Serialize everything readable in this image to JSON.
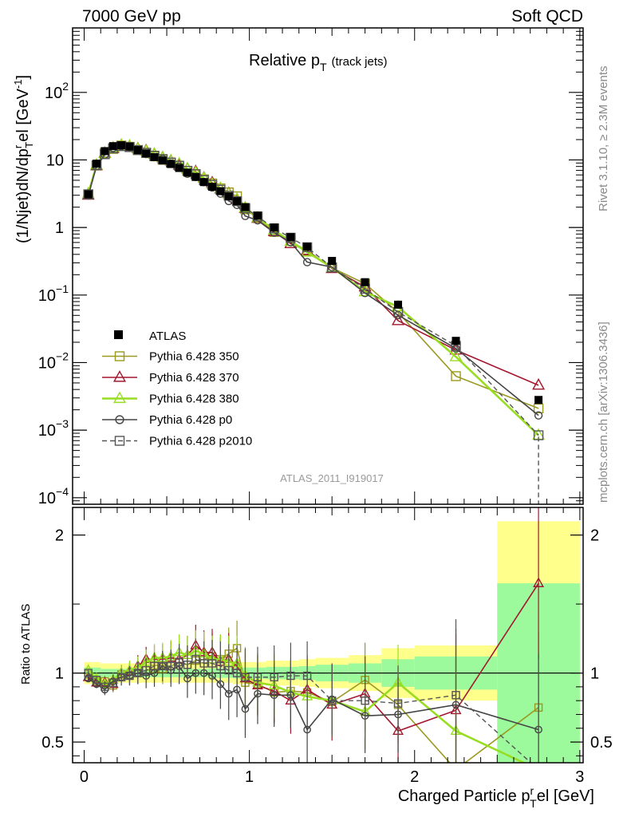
{
  "header": {
    "left": "7000 GeV pp",
    "right": "Soft QCD"
  },
  "side_labels": {
    "rivet": "Rivet 3.1.10, ≥ 2.3M events",
    "mcplots": "mcplots.cern.ch [arXiv:1306.3436]"
  },
  "chart_data": {
    "type": "line",
    "title_main": "Relative p",
    "title_sub": "T",
    "title_paren": "(track jets)",
    "watermark": "ATLAS_2011_I919017",
    "ylabel_text": "(1/Njet)dN/dp",
    "ylabel_super": "r",
    "ylabel_sub": "T",
    "ylabel_tail": "el [GeV",
    "ylabel_exp": "-1",
    "ylabel_close": "]",
    "xlabel_text": "Charged Particle p",
    "xlabel_super": "r",
    "xlabel_sub": "T",
    "xlabel_tail": "el [GeV]",
    "ratio_ylabel": "Ratio to ATLAS",
    "xlim": [
      -0.07,
      3.02
    ],
    "ylim_log": [
      8e-05,
      900
    ],
    "ratio_ylim": [
      0.35,
      2.2
    ],
    "y_ticks": [
      {
        "v": 0.0001,
        "b": "10",
        "e": "−4"
      },
      {
        "v": 0.001,
        "b": "10",
        "e": "−3"
      },
      {
        "v": 0.01,
        "b": "10",
        "e": "−2"
      },
      {
        "v": 0.1,
        "b": "10",
        "e": "−1"
      },
      {
        "v": 1,
        "b": "1",
        "e": ""
      },
      {
        "v": 10,
        "b": "10",
        "e": ""
      },
      {
        "v": 100,
        "b": "10",
        "e": "2"
      }
    ],
    "x_ticks": [
      "0",
      "1",
      "2",
      "3"
    ],
    "x_tick_values": [
      0,
      1,
      2,
      3
    ],
    "ratio_ticks": [
      "0.5",
      "1",
      "2"
    ],
    "ratio_tick_values": [
      0.5,
      1,
      2
    ],
    "x": [
      0.025,
      0.075,
      0.125,
      0.175,
      0.225,
      0.275,
      0.325,
      0.375,
      0.425,
      0.475,
      0.525,
      0.575,
      0.625,
      0.675,
      0.725,
      0.775,
      0.825,
      0.875,
      0.925,
      0.975,
      1.05,
      1.15,
      1.25,
      1.35,
      1.5,
      1.7,
      1.9,
      2.25,
      2.75
    ],
    "bin_edges": [
      0.0,
      0.05,
      0.1,
      0.15,
      0.2,
      0.25,
      0.3,
      0.35,
      0.4,
      0.45,
      0.5,
      0.55,
      0.6,
      0.65,
      0.7,
      0.75,
      0.8,
      0.85,
      0.9,
      0.95,
      1.0,
      1.1,
      1.2,
      1.3,
      1.4,
      1.6,
      1.8,
      2.0,
      2.5,
      3.0
    ],
    "data": {
      "name": "ATLAS",
      "values": [
        3.1,
        8.8,
        13.5,
        16.0,
        16.5,
        15.8,
        14.0,
        12.5,
        11.0,
        9.8,
        8.7,
        7.6,
        6.5,
        5.6,
        4.7,
        4.0,
        3.45,
        2.9,
        2.45,
        2.0,
        1.5,
        1.0,
        0.72,
        0.52,
        0.32,
        0.155,
        0.072,
        0.021,
        0.0028
      ],
      "stat_band": [
        0.04,
        0.04,
        0.03,
        0.03,
        0.03,
        0.03,
        0.03,
        0.03,
        0.03,
        0.03,
        0.03,
        0.03,
        0.03,
        0.03,
        0.03,
        0.035,
        0.035,
        0.035,
        0.04,
        0.04,
        0.04,
        0.045,
        0.045,
        0.05,
        0.06,
        0.07,
        0.1,
        0.12,
        0.65
      ],
      "total_band": [
        0.08,
        0.08,
        0.07,
        0.07,
        0.07,
        0.07,
        0.07,
        0.07,
        0.07,
        0.07,
        0.07,
        0.07,
        0.07,
        0.07,
        0.07,
        0.07,
        0.07,
        0.07,
        0.08,
        0.08,
        0.08,
        0.09,
        0.09,
        0.1,
        0.11,
        0.13,
        0.18,
        0.2,
        1.1
      ]
    },
    "series": [
      {
        "name": "Pythia 6.428 350",
        "color": "#9b9a20",
        "marker": "square",
        "dash": false,
        "width": 1.6,
        "ratio": [
          0.99,
          0.94,
          0.94,
          0.91,
          0.99,
          0.99,
          1.0,
          1.02,
          1.03,
          1.03,
          1.05,
          1.08,
          1.06,
          1.09,
          1.1,
          1.12,
          1.1,
          1.14,
          1.18,
          0.93,
          0.92,
          0.86,
          0.87,
          0.86,
          0.79,
          0.95,
          0.77,
          0.3,
          0.75
        ]
      },
      {
        "name": "Pythia 6.428 370",
        "color": "#a3172f",
        "marker": "triangle",
        "dash": false,
        "width": 1.6,
        "ratio": [
          0.97,
          0.93,
          0.93,
          0.92,
          1.0,
          1.01,
          1.05,
          1.1,
          1.1,
          1.1,
          1.11,
          1.1,
          1.13,
          1.2,
          1.15,
          1.15,
          1.08,
          1.1,
          1.05,
          0.96,
          0.91,
          0.87,
          0.8,
          0.88,
          0.77,
          0.85,
          0.58,
          0.73,
          1.65
        ]
      },
      {
        "name": "Pythia 6.428 380",
        "color": "#99dd22",
        "marker": "triangle",
        "dash": false,
        "width": 2.6,
        "ratio": [
          1.02,
          0.96,
          0.92,
          0.95,
          1.0,
          1.02,
          1.04,
          1.08,
          1.11,
          1.11,
          1.12,
          1.15,
          1.13,
          1.16,
          1.14,
          1.1,
          1.1,
          1.08,
          1.07,
          0.98,
          0.93,
          0.91,
          0.86,
          0.83,
          0.8,
          0.72,
          0.93,
          0.58,
          0.3
        ]
      },
      {
        "name": "Pythia 6.428 p0",
        "color": "#444444",
        "marker": "circle",
        "dash": false,
        "width": 1.6,
        "ratio": [
          0.96,
          0.92,
          0.88,
          0.94,
          0.97,
          0.98,
          1.0,
          0.98,
          1.0,
          1.05,
          1.02,
          1.05,
          0.96,
          1.0,
          1.0,
          0.98,
          0.92,
          0.85,
          0.88,
          0.74,
          0.85,
          0.84,
          0.84,
          0.59,
          0.81,
          0.69,
          0.7,
          0.77,
          0.59
        ]
      },
      {
        "name": "Pythia 6.428 p2010",
        "color": "#555555",
        "marker": "square",
        "dash": true,
        "width": 1.4,
        "ratio": [
          1.0,
          0.95,
          0.9,
          0.93,
          0.97,
          0.98,
          1.0,
          1.02,
          1.05,
          1.05,
          1.05,
          1.08,
          1.06,
          1.1,
          1.07,
          1.07,
          1.05,
          1.02,
          1.0,
          0.97,
          0.97,
          0.97,
          0.98,
          0.98,
          0.8,
          0.8,
          0.78,
          0.84,
          0.3
        ]
      }
    ],
    "data_marker_label": "ATLAS"
  }
}
